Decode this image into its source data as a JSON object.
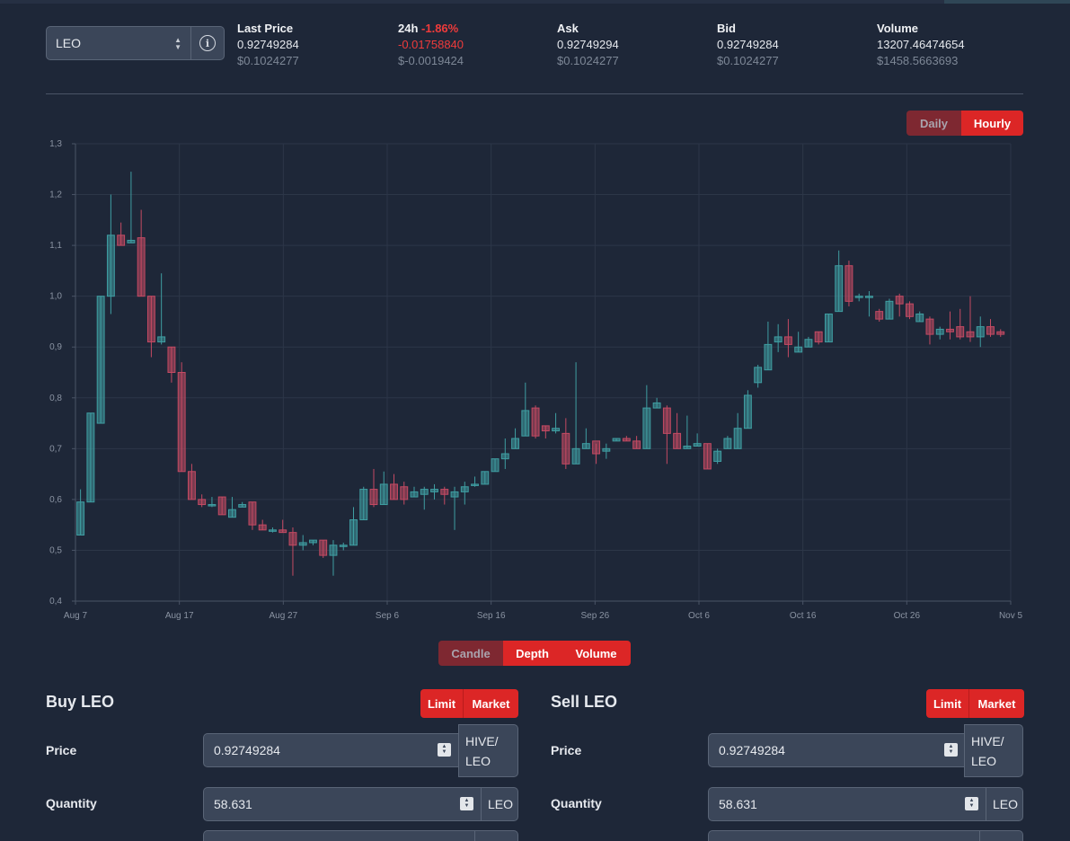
{
  "token_select": {
    "value": "LEO"
  },
  "stats": [
    {
      "label": "Last Price",
      "value": "0.92749284",
      "usd": "$0.1024277"
    },
    {
      "label": "24h",
      "change_pct": "-1.86%",
      "value": "-0.01758840",
      "usd": "$-0.0019424"
    },
    {
      "label": "Ask",
      "value": "0.92749294",
      "usd": "$0.1024277"
    },
    {
      "label": "Bid",
      "value": "0.92749284",
      "usd": "$0.1024277"
    },
    {
      "label": "Volume",
      "value": "13207.46474654",
      "usd": "$1458.5663693"
    }
  ],
  "interval_toggle": {
    "daily": "Daily",
    "hourly": "Hourly",
    "active": "Hourly"
  },
  "view_toggle": {
    "candle": "Candle",
    "depth": "Depth",
    "volume": "Volume",
    "active": [
      "Depth",
      "Volume"
    ]
  },
  "colors": {
    "up": "#3f9ea2",
    "down": "#c44a63",
    "accent": "#dc2626",
    "background": "#1e2738"
  },
  "chart_data": {
    "type": "candlestick",
    "y_ticks": [
      "0,4",
      "0,5",
      "0,6",
      "0,7",
      "0,8",
      "0,9",
      "1,0",
      "1,1",
      "1,2",
      "1,3"
    ],
    "ylim": [
      0.4,
      1.3
    ],
    "x_ticks": [
      "Aug 7",
      "Aug 17",
      "Aug 27",
      "Sep 6",
      "Sep 16",
      "Sep 26",
      "Oct 6",
      "Oct 16",
      "Oct 26",
      "Nov 5"
    ],
    "grid": true,
    "candles": [
      [
        0.53,
        0.595,
        0.62,
        0.53
      ],
      [
        0.595,
        0.77,
        0.77,
        0.595
      ],
      [
        0.75,
        1.0,
        1.0,
        0.75
      ],
      [
        1.0,
        1.12,
        1.2,
        0.965
      ],
      [
        1.12,
        1.1,
        1.145,
        1.1
      ],
      [
        1.105,
        1.11,
        1.245,
        1.105
      ],
      [
        1.115,
        1.0,
        1.17,
        1.0
      ],
      [
        1.0,
        0.91,
        1.0,
        0.88
      ],
      [
        0.91,
        0.92,
        1.045,
        0.905
      ],
      [
        0.9,
        0.85,
        0.9,
        0.83
      ],
      [
        0.85,
        0.655,
        0.87,
        0.655
      ],
      [
        0.655,
        0.6,
        0.67,
        0.6
      ],
      [
        0.6,
        0.59,
        0.61,
        0.585
      ],
      [
        0.59,
        0.59,
        0.605,
        0.585
      ],
      [
        0.605,
        0.57,
        0.605,
        0.57
      ],
      [
        0.565,
        0.58,
        0.605,
        0.565
      ],
      [
        0.585,
        0.59,
        0.595,
        0.585
      ],
      [
        0.595,
        0.55,
        0.595,
        0.54
      ],
      [
        0.55,
        0.54,
        0.56,
        0.54
      ],
      [
        0.54,
        0.54,
        0.545,
        0.535
      ],
      [
        0.54,
        0.535,
        0.56,
        0.535
      ],
      [
        0.535,
        0.51,
        0.545,
        0.45
      ],
      [
        0.51,
        0.515,
        0.53,
        0.5
      ],
      [
        0.515,
        0.52,
        0.52,
        0.51
      ],
      [
        0.52,
        0.49,
        0.52,
        0.485
      ],
      [
        0.49,
        0.51,
        0.52,
        0.45
      ],
      [
        0.51,
        0.51,
        0.515,
        0.5
      ],
      [
        0.51,
        0.56,
        0.585,
        0.51
      ],
      [
        0.56,
        0.62,
        0.625,
        0.56
      ],
      [
        0.62,
        0.59,
        0.66,
        0.585
      ],
      [
        0.59,
        0.63,
        0.655,
        0.59
      ],
      [
        0.63,
        0.6,
        0.65,
        0.6
      ],
      [
        0.625,
        0.6,
        0.635,
        0.59
      ],
      [
        0.605,
        0.615,
        0.625,
        0.605
      ],
      [
        0.61,
        0.62,
        0.625,
        0.58
      ],
      [
        0.615,
        0.62,
        0.63,
        0.6
      ],
      [
        0.62,
        0.61,
        0.625,
        0.59
      ],
      [
        0.605,
        0.615,
        0.625,
        0.54
      ],
      [
        0.615,
        0.625,
        0.635,
        0.59
      ],
      [
        0.63,
        0.63,
        0.645,
        0.625
      ],
      [
        0.63,
        0.655,
        0.655,
        0.63
      ],
      [
        0.655,
        0.68,
        0.68,
        0.655
      ],
      [
        0.68,
        0.69,
        0.72,
        0.66
      ],
      [
        0.7,
        0.72,
        0.74,
        0.7
      ],
      [
        0.725,
        0.775,
        0.83,
        0.725
      ],
      [
        0.78,
        0.725,
        0.785,
        0.72
      ],
      [
        0.745,
        0.735,
        0.745,
        0.72
      ],
      [
        0.735,
        0.74,
        0.77,
        0.73
      ],
      [
        0.73,
        0.67,
        0.76,
        0.66
      ],
      [
        0.67,
        0.7,
        0.87,
        0.67
      ],
      [
        0.7,
        0.71,
        0.74,
        0.7
      ],
      [
        0.715,
        0.69,
        0.71,
        0.67
      ],
      [
        0.695,
        0.7,
        0.71,
        0.68
      ],
      [
        0.715,
        0.72,
        0.72,
        0.715
      ],
      [
        0.72,
        0.715,
        0.725,
        0.715
      ],
      [
        0.715,
        0.7,
        0.725,
        0.7
      ],
      [
        0.7,
        0.78,
        0.825,
        0.7
      ],
      [
        0.78,
        0.79,
        0.8,
        0.78
      ],
      [
        0.78,
        0.73,
        0.785,
        0.67
      ],
      [
        0.73,
        0.7,
        0.77,
        0.7
      ],
      [
        0.7,
        0.705,
        0.765,
        0.7
      ],
      [
        0.705,
        0.71,
        0.73,
        0.705
      ],
      [
        0.71,
        0.66,
        0.71,
        0.66
      ],
      [
        0.675,
        0.695,
        0.7,
        0.67
      ],
      [
        0.7,
        0.72,
        0.725,
        0.7
      ],
      [
        0.7,
        0.74,
        0.77,
        0.7
      ],
      [
        0.74,
        0.805,
        0.815,
        0.74
      ],
      [
        0.83,
        0.86,
        0.865,
        0.82
      ],
      [
        0.855,
        0.905,
        0.95,
        0.855
      ],
      [
        0.91,
        0.92,
        0.945,
        0.89
      ],
      [
        0.92,
        0.905,
        0.955,
        0.88
      ],
      [
        0.89,
        0.9,
        0.93,
        0.89
      ],
      [
        0.9,
        0.915,
        0.92,
        0.9
      ],
      [
        0.93,
        0.91,
        0.93,
        0.905
      ],
      [
        0.91,
        0.965,
        0.965,
        0.91
      ],
      [
        0.97,
        1.06,
        1.09,
        0.97
      ],
      [
        1.06,
        0.99,
        1.07,
        0.98
      ],
      [
        1.0,
        1.0,
        1.005,
        0.99
      ],
      [
        1.0,
        1.0,
        1.01,
        0.96
      ],
      [
        0.97,
        0.955,
        0.975,
        0.95
      ],
      [
        0.955,
        0.99,
        0.995,
        0.955
      ],
      [
        1.0,
        0.985,
        1.005,
        0.96
      ],
      [
        0.985,
        0.96,
        0.99,
        0.955
      ],
      [
        0.95,
        0.965,
        0.97,
        0.95
      ],
      [
        0.955,
        0.925,
        0.96,
        0.905
      ],
      [
        0.925,
        0.935,
        0.94,
        0.915
      ],
      [
        0.935,
        0.93,
        0.97,
        0.915
      ],
      [
        0.94,
        0.92,
        0.975,
        0.915
      ],
      [
        0.93,
        0.92,
        1.0,
        0.91
      ],
      [
        0.92,
        0.94,
        0.96,
        0.9
      ],
      [
        0.94,
        0.925,
        0.955,
        0.92
      ],
      [
        0.93,
        0.925,
        0.935,
        0.92
      ]
    ]
  },
  "buy": {
    "title": "Buy LEO",
    "type_limit": "Limit",
    "type_market": "Market",
    "price_label": "Price",
    "price_value": "0.92749284",
    "price_unit": "HIVE/ LEO",
    "qty_label": "Quantity",
    "qty_value": "58.631",
    "qty_unit": "LEO"
  },
  "sell": {
    "title": "Sell LEO",
    "type_limit": "Limit",
    "type_market": "Market",
    "price_label": "Price",
    "price_value": "0.92749284",
    "price_unit": "HIVE/ LEO",
    "qty_label": "Quantity",
    "qty_value": "58.631",
    "qty_unit": "LEO"
  }
}
